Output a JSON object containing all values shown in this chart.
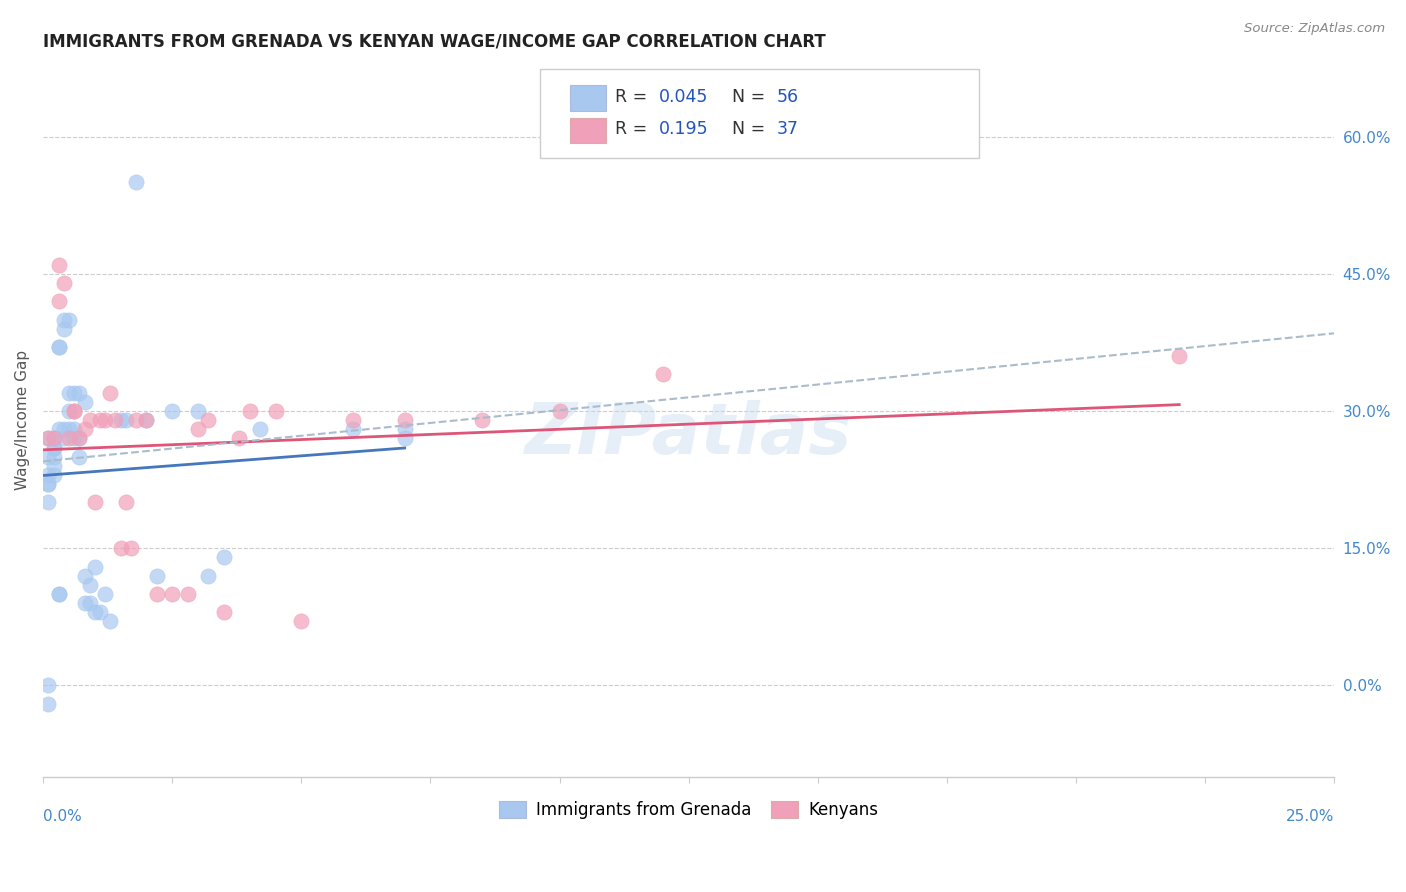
{
  "title": "IMMIGRANTS FROM GRENADA VS KENYAN WAGE/INCOME GAP CORRELATION CHART",
  "source": "Source: ZipAtlas.com",
  "ylabel": "Wage/Income Gap",
  "xlim": [
    0.0,
    0.25
  ],
  "ylim": [
    -0.1,
    0.68
  ],
  "blue_color": "#A8C8F0",
  "pink_color": "#F0A0B8",
  "trend_blue": "#4477BB",
  "trend_pink": "#DD5577",
  "trend_dashed_color": "#AABBCC",
  "right_tick_color": "#4488CC",
  "x_tick_color": "#4488CC",
  "legend_R_blue": "0.045",
  "legend_N_blue": "56",
  "legend_R_pink": "0.195",
  "legend_N_pink": "37",
  "blue_x": [
    0.001,
    0.001,
    0.001,
    0.001,
    0.001,
    0.001,
    0.001,
    0.001,
    0.002,
    0.002,
    0.002,
    0.002,
    0.002,
    0.002,
    0.003,
    0.003,
    0.003,
    0.003,
    0.003,
    0.004,
    0.004,
    0.004,
    0.004,
    0.005,
    0.005,
    0.005,
    0.005,
    0.006,
    0.006,
    0.006,
    0.007,
    0.007,
    0.007,
    0.008,
    0.008,
    0.008,
    0.009,
    0.009,
    0.01,
    0.01,
    0.011,
    0.012,
    0.013,
    0.015,
    0.016,
    0.018,
    0.02,
    0.022,
    0.025,
    0.03,
    0.032,
    0.035,
    0.042,
    0.06,
    0.07,
    0.07
  ],
  "blue_y": [
    0.27,
    0.25,
    0.23,
    0.22,
    0.22,
    0.2,
    0.0,
    -0.02,
    0.27,
    0.26,
    0.26,
    0.25,
    0.24,
    0.23,
    0.37,
    0.37,
    0.28,
    0.1,
    0.1,
    0.4,
    0.39,
    0.28,
    0.27,
    0.4,
    0.32,
    0.3,
    0.28,
    0.32,
    0.28,
    0.27,
    0.32,
    0.27,
    0.25,
    0.31,
    0.12,
    0.09,
    0.11,
    0.09,
    0.13,
    0.08,
    0.08,
    0.1,
    0.07,
    0.29,
    0.29,
    0.55,
    0.29,
    0.12,
    0.3,
    0.3,
    0.12,
    0.14,
    0.28,
    0.28,
    0.28,
    0.27
  ],
  "pink_x": [
    0.001,
    0.002,
    0.003,
    0.003,
    0.004,
    0.005,
    0.006,
    0.006,
    0.007,
    0.008,
    0.009,
    0.01,
    0.011,
    0.012,
    0.013,
    0.014,
    0.015,
    0.016,
    0.017,
    0.018,
    0.02,
    0.022,
    0.025,
    0.028,
    0.03,
    0.032,
    0.035,
    0.038,
    0.04,
    0.045,
    0.05,
    0.06,
    0.07,
    0.085,
    0.1,
    0.12,
    0.22
  ],
  "pink_y": [
    0.27,
    0.27,
    0.46,
    0.42,
    0.44,
    0.27,
    0.3,
    0.3,
    0.27,
    0.28,
    0.29,
    0.2,
    0.29,
    0.29,
    0.32,
    0.29,
    0.15,
    0.2,
    0.15,
    0.29,
    0.29,
    0.1,
    0.1,
    0.1,
    0.28,
    0.29,
    0.08,
    0.27,
    0.3,
    0.3,
    0.07,
    0.29,
    0.29,
    0.29,
    0.3,
    0.34,
    0.36
  ],
  "watermark": "ZIPatlas",
  "legend_label_blue": "Immigrants from Grenada",
  "legend_label_pink": "Kenyans"
}
